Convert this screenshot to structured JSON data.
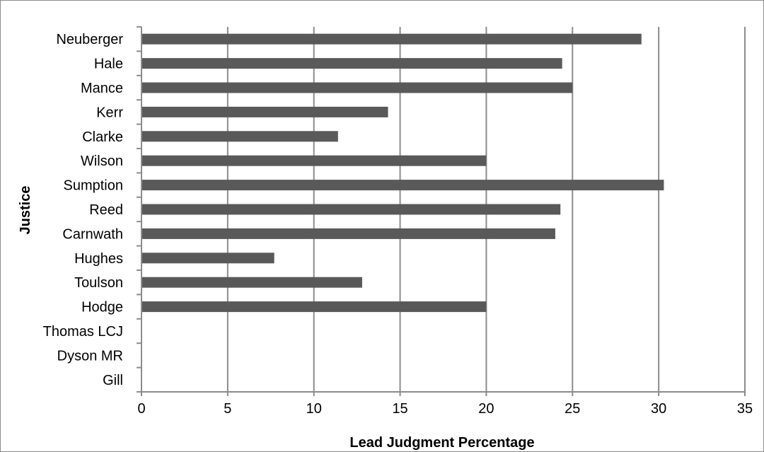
{
  "chart_data": {
    "type": "bar",
    "orientation": "horizontal",
    "title": "",
    "xlabel": "Lead Judgment Percentage",
    "ylabel": "Justice",
    "categories": [
      "Neuberger",
      "Hale",
      "Mance",
      "Kerr",
      "Clarke",
      "Wilson",
      "Sumption",
      "Reed",
      "Carnwath",
      "Hughes",
      "Toulson",
      "Hodge",
      "Thomas LCJ",
      "Dyson MR",
      "Gill"
    ],
    "values": [
      29.0,
      24.4,
      25.0,
      14.3,
      11.4,
      20.0,
      30.3,
      24.3,
      24.0,
      7.7,
      12.8,
      20.0,
      0,
      0,
      0
    ],
    "xlim": [
      0,
      35
    ],
    "xticks": [
      0,
      5,
      10,
      15,
      20,
      25,
      30,
      35
    ],
    "grid": "vertical",
    "legend": "none",
    "colors": {
      "bar": "#595959",
      "grid": "#8c8c8c",
      "axis": "#8c8c8c",
      "text": "#000000",
      "frame": "#8c8c8c"
    }
  }
}
